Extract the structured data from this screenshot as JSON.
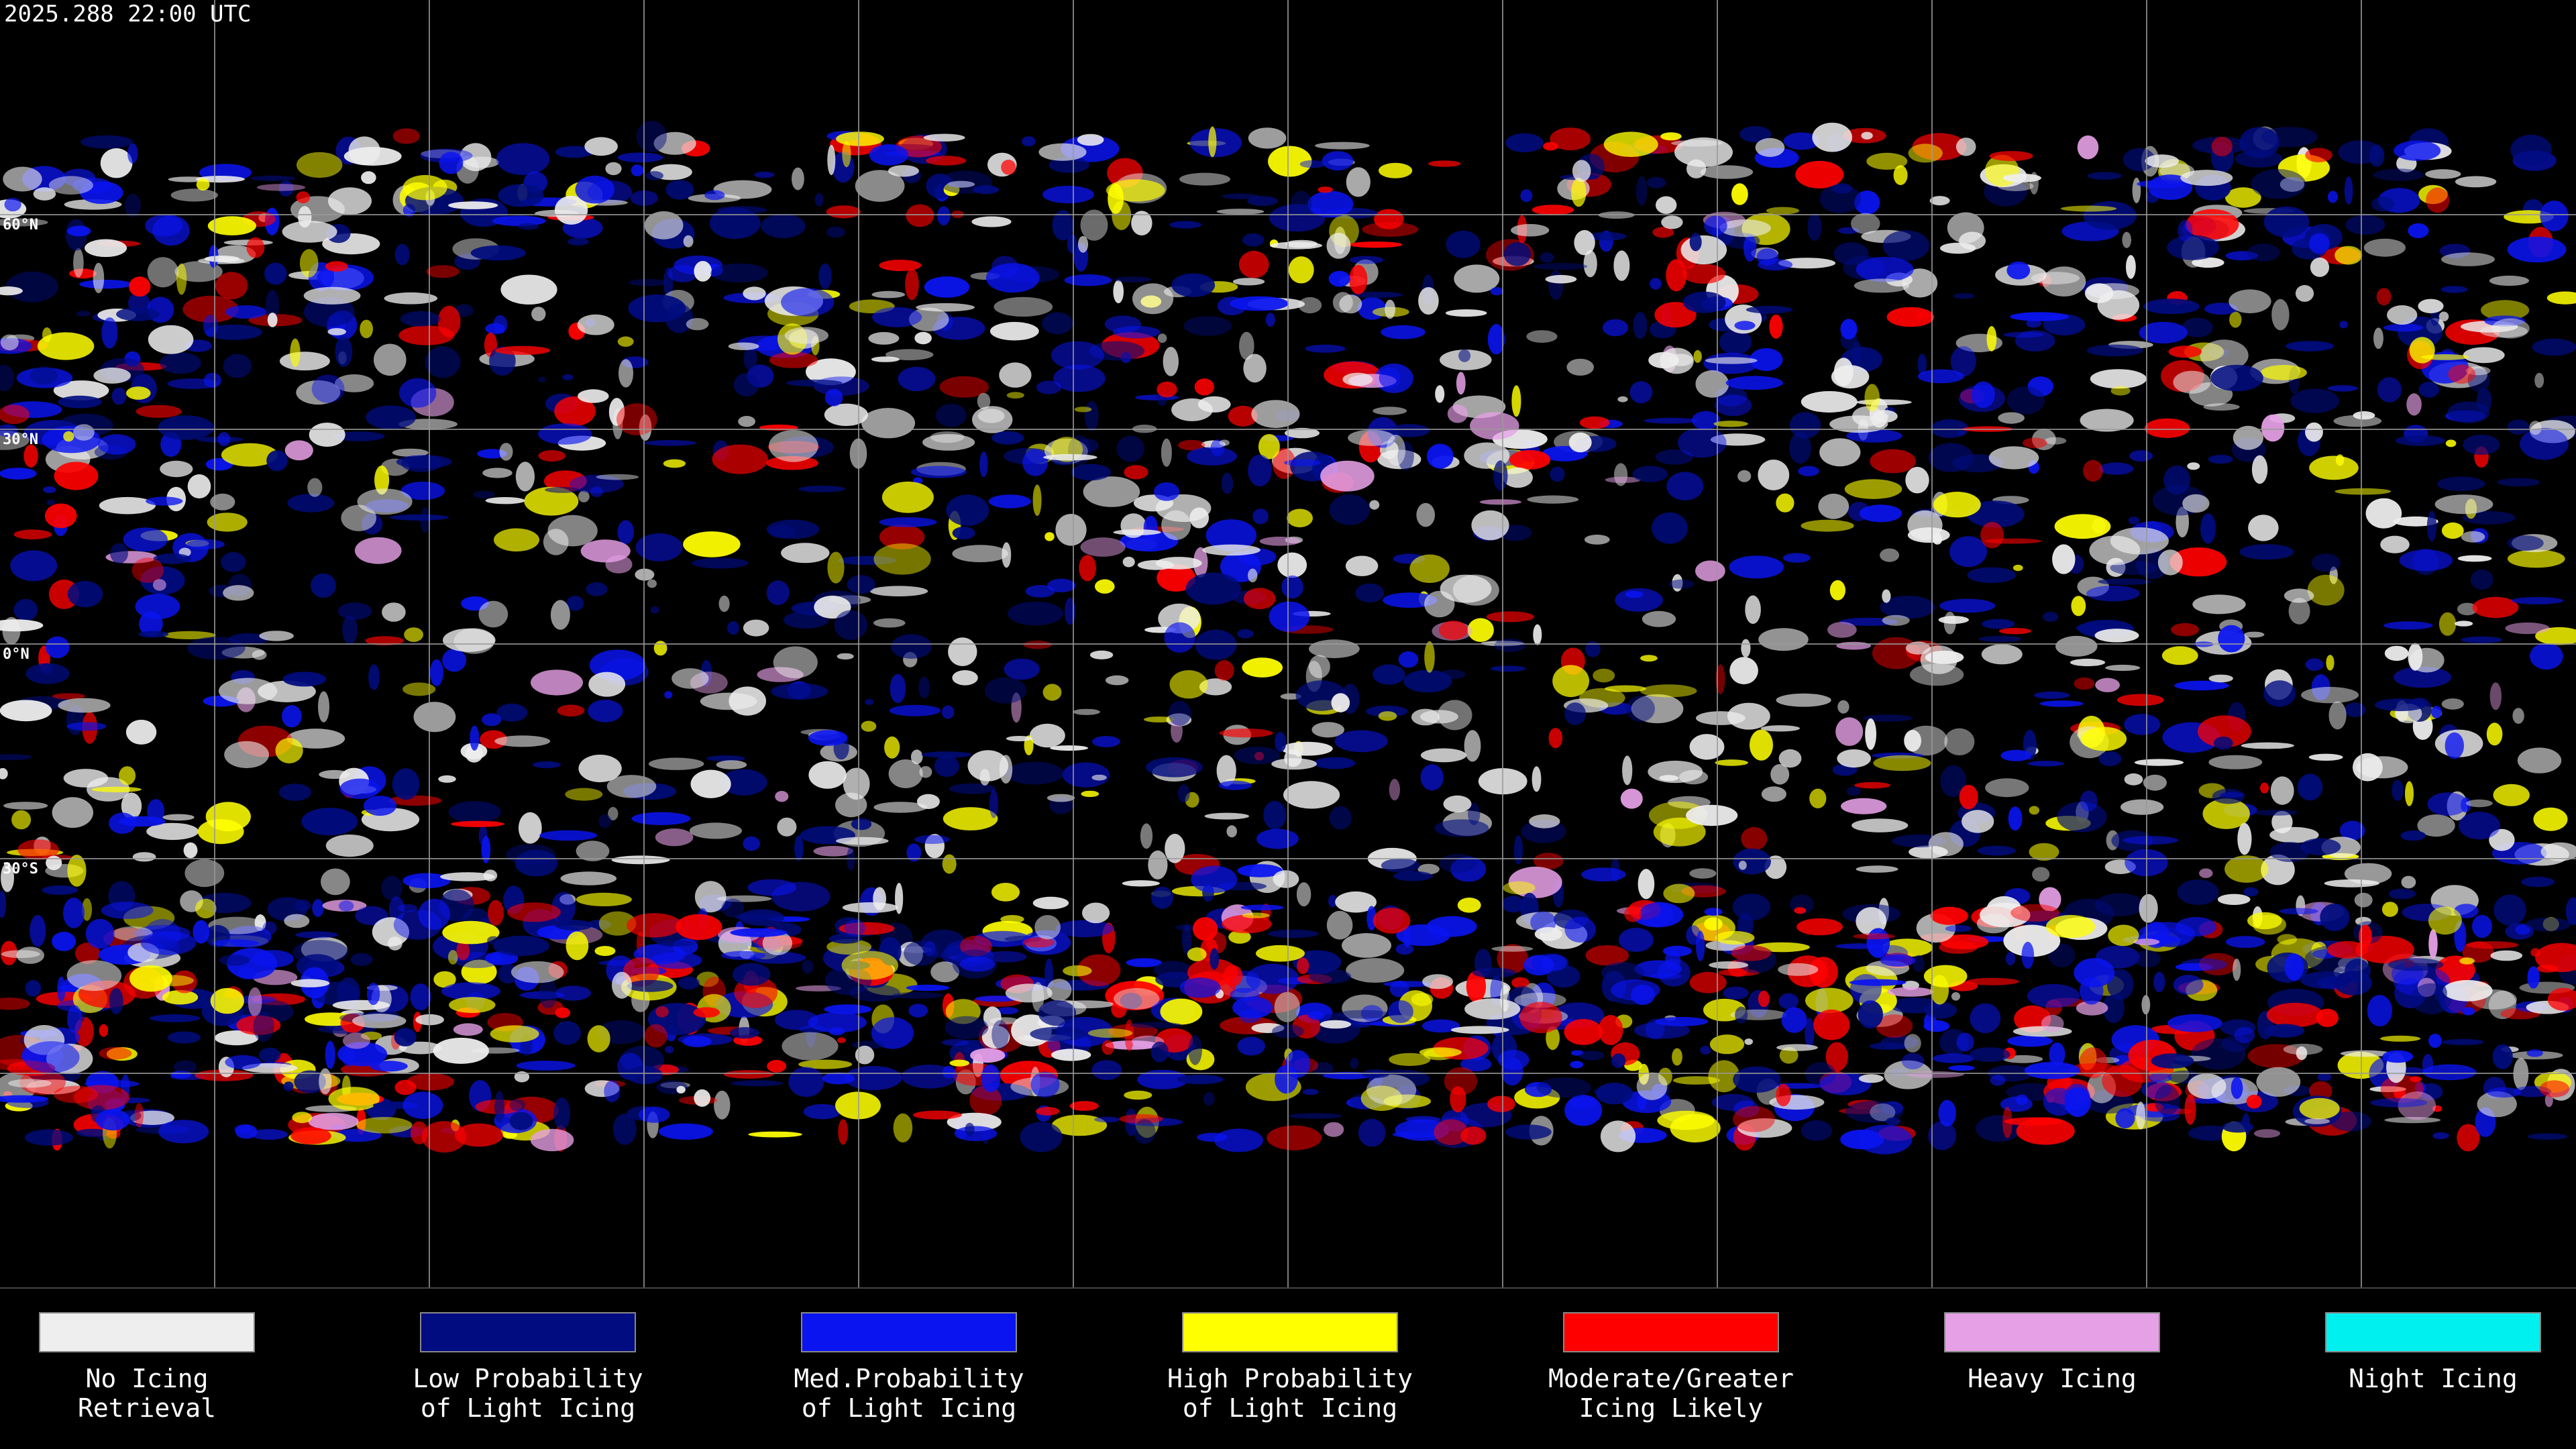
{
  "header": {
    "timestamp": "2025.288 22:00 UTC"
  },
  "map": {
    "latitude_labels": [
      "60°N",
      "30°N",
      "0°N",
      "30°S"
    ]
  },
  "legend": [
    {
      "label_lines": [
        "No Icing",
        "Retrieval"
      ],
      "color": "#eeeeee"
    },
    {
      "label_lines": [
        "Low Probability",
        "of Light Icing"
      ],
      "color": "#000c80"
    },
    {
      "label_lines": [
        "Med.Probability",
        "of Light Icing"
      ],
      "color": "#0a14f0"
    },
    {
      "label_lines": [
        "High Probability",
        "of Light Icing"
      ],
      "color": "#ffff00"
    },
    {
      "label_lines": [
        "Moderate/Greater",
        "Icing Likely"
      ],
      "color": "#ff0000"
    },
    {
      "label_lines": [
        "Heavy Icing"
      ],
      "color": "#e6a0e6"
    },
    {
      "label_lines": [
        "Night Icing"
      ],
      "color": "#00f0f0"
    }
  ]
}
